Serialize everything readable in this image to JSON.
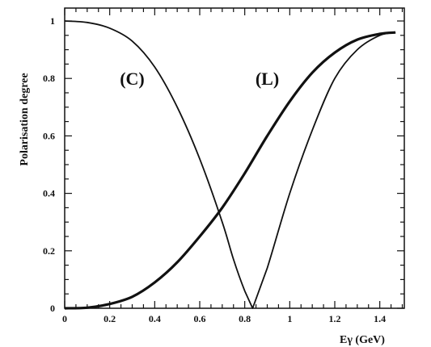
{
  "chart_data": {
    "type": "line",
    "ylabel": "Polarisation degree",
    "xlabel": "Eγ (GeV)",
    "xlim": [
      0,
      1.5
    ],
    "ylim": [
      0,
      1.05
    ],
    "x_ticks": [
      "0",
      "0.2",
      "0.4",
      "0.6",
      "0.8",
      "1",
      "1.2",
      "1.4"
    ],
    "y_ticks": [
      "0",
      "0.2",
      "0.4",
      "0.6",
      "0.8",
      "1"
    ],
    "grid": false,
    "series": [
      {
        "name": "(C)",
        "x": [
          0,
          0.1,
          0.2,
          0.3,
          0.4,
          0.5,
          0.6,
          0.7,
          0.75,
          0.8,
          0.835,
          0.9,
          1.0,
          1.1,
          1.2,
          1.3,
          1.4,
          1.47
        ],
        "y": [
          1.0,
          0.995,
          0.975,
          0.93,
          0.84,
          0.7,
          0.52,
          0.3,
          0.17,
          0.06,
          0.0,
          0.14,
          0.4,
          0.62,
          0.8,
          0.9,
          0.95,
          0.96
        ]
      },
      {
        "name": "(L)",
        "x": [
          0,
          0.1,
          0.2,
          0.3,
          0.4,
          0.5,
          0.6,
          0.7,
          0.8,
          0.9,
          1.0,
          1.1,
          1.2,
          1.3,
          1.4,
          1.47
        ],
        "y": [
          0.0,
          0.002,
          0.015,
          0.04,
          0.09,
          0.16,
          0.25,
          0.35,
          0.47,
          0.6,
          0.72,
          0.82,
          0.89,
          0.935,
          0.955,
          0.96
        ]
      }
    ],
    "annotations": [
      {
        "text": "(C)",
        "x": 0.3,
        "y": 0.8
      },
      {
        "text": "(L)",
        "x": 0.9,
        "y": 0.8
      }
    ]
  }
}
